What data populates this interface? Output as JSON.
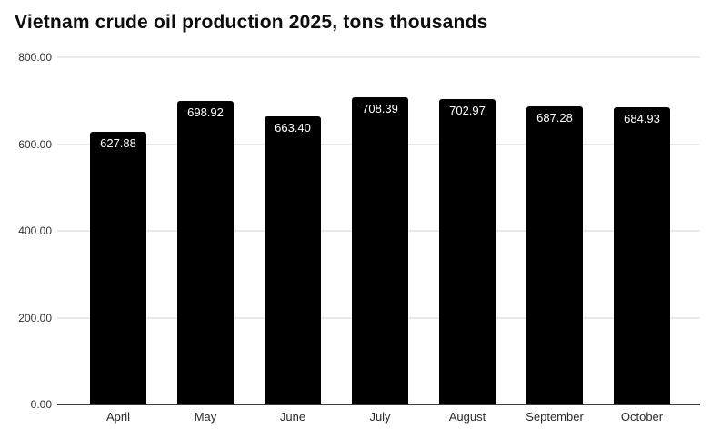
{
  "page": {
    "title": "Vietnam crude oil production 2025, tons thousands"
  },
  "chart_data": {
    "type": "bar",
    "title": "Vietnam crude oil production 2025, tons thousands",
    "categories": [
      "April",
      "May",
      "June",
      "July",
      "August",
      "September",
      "October"
    ],
    "values": [
      627.88,
      698.92,
      663.4,
      708.39,
      702.97,
      687.28,
      684.93
    ],
    "value_labels": [
      "627.88",
      "698.92",
      "663.40",
      "708.39",
      "702.97",
      "687.28",
      "684.93"
    ],
    "xlabel": "",
    "ylabel": "",
    "ylim": [
      0,
      800
    ],
    "y_ticks": [
      0,
      200,
      400,
      600,
      800
    ],
    "y_tick_labels": [
      "0.00",
      "200.00",
      "400.00",
      "600.00",
      "800.00"
    ],
    "grid": true,
    "legend": "none",
    "colors": {
      "bar": "#000000",
      "bar_label_text": "#ffffff",
      "gridline": "#e9e9e9",
      "axis_line": "#3a3a3a",
      "tick_text": "#333333",
      "title_text": "#0d0d0d",
      "background": "#ffffff"
    }
  }
}
